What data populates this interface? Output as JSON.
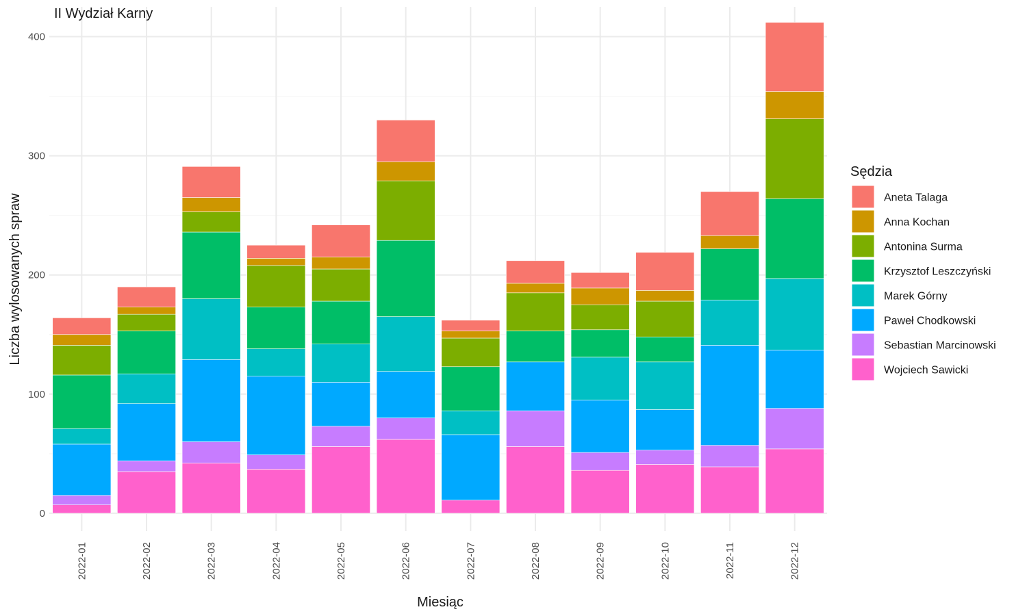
{
  "chart_data": {
    "type": "bar",
    "stacked": true,
    "title": "II Wydział Karny",
    "xlabel": "Miesiąc",
    "ylabel": "Liczba wylosowanych spraw",
    "legend_title": "Sędzia",
    "legend_position": "right",
    "grid": true,
    "ylim": [
      -15,
      425
    ],
    "yticks": [
      0,
      100,
      200,
      300,
      400
    ],
    "categories": [
      "2022-01",
      "2022-02",
      "2022-03",
      "2022-04",
      "2022-05",
      "2022-06",
      "2022-07",
      "2022-08",
      "2022-09",
      "2022-10",
      "2022-11",
      "2022-12"
    ],
    "series": [
      {
        "name": "Aneta Talaga",
        "color": "#F8766D",
        "values": [
          14,
          17,
          26,
          11,
          27,
          35,
          9,
          19,
          13,
          32,
          37,
          58
        ]
      },
      {
        "name": "Anna Kochan",
        "color": "#CD9600",
        "values": [
          9,
          6,
          12,
          6,
          10,
          16,
          6,
          8,
          14,
          9,
          11,
          23
        ]
      },
      {
        "name": "Antonina Surma",
        "color": "#7CAE00",
        "values": [
          25,
          14,
          17,
          35,
          27,
          50,
          24,
          32,
          21,
          30,
          0,
          67
        ]
      },
      {
        "name": "Krzysztof Leszczyński",
        "color": "#00BE67",
        "values": [
          45,
          36,
          56,
          35,
          36,
          64,
          37,
          26,
          23,
          21,
          43,
          67
        ]
      },
      {
        "name": "Marek Górny",
        "color": "#00BFC4",
        "values": [
          13,
          25,
          51,
          23,
          32,
          46,
          20,
          0,
          36,
          40,
          38,
          60
        ]
      },
      {
        "name": "Paweł Chodkowski",
        "color": "#00A9FF",
        "values": [
          43,
          48,
          69,
          66,
          37,
          39,
          55,
          41,
          44,
          34,
          84,
          49
        ]
      },
      {
        "name": "Sebastian Marcinowski",
        "color": "#C77CFF",
        "values": [
          8,
          9,
          18,
          12,
          17,
          18,
          0,
          30,
          15,
          12,
          18,
          34
        ]
      },
      {
        "name": "Wojciech Sawicki",
        "color": "#FF61CC",
        "values": [
          7,
          35,
          42,
          37,
          56,
          62,
          11,
          56,
          36,
          41,
          39,
          54
        ]
      }
    ]
  }
}
